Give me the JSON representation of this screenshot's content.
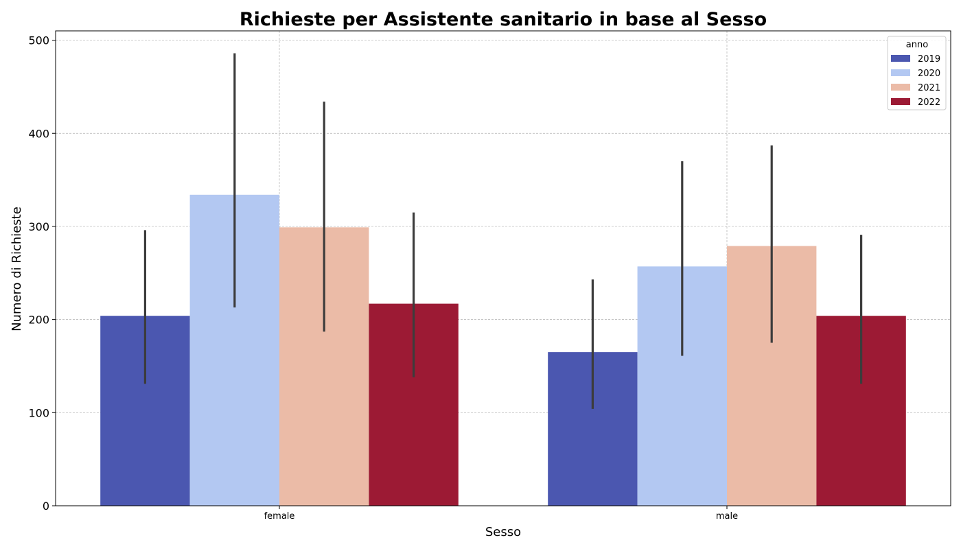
{
  "chart_data": {
    "type": "bar",
    "title": "Richieste per Assistente sanitario in base al Sesso",
    "xlabel": "Sesso",
    "ylabel": "Numero di Richieste",
    "categories": [
      "female",
      "male"
    ],
    "ylim": [
      0,
      510
    ],
    "yticks": [
      0,
      100,
      200,
      300,
      400,
      500
    ],
    "grid": true,
    "legend": {
      "title": "anno",
      "position": "top-right"
    },
    "series": [
      {
        "name": "2019",
        "color": "#4b57b0",
        "values": [
          204,
          165
        ],
        "err_low": [
          131,
          104
        ],
        "err_high": [
          296,
          243
        ]
      },
      {
        "name": "2020",
        "color": "#b3c8f2",
        "values": [
          334,
          257
        ],
        "err_low": [
          213,
          161
        ],
        "err_high": [
          486,
          370
        ]
      },
      {
        "name": "2021",
        "color": "#ebbba7",
        "values": [
          299,
          279
        ],
        "err_low": [
          187,
          175
        ],
        "err_high": [
          434,
          387
        ]
      },
      {
        "name": "2022",
        "color": "#9c1a34",
        "values": [
          217,
          204
        ],
        "err_low": [
          138,
          131
        ],
        "err_high": [
          315,
          291
        ]
      }
    ],
    "errorbar_color": "#3c3c3c"
  }
}
